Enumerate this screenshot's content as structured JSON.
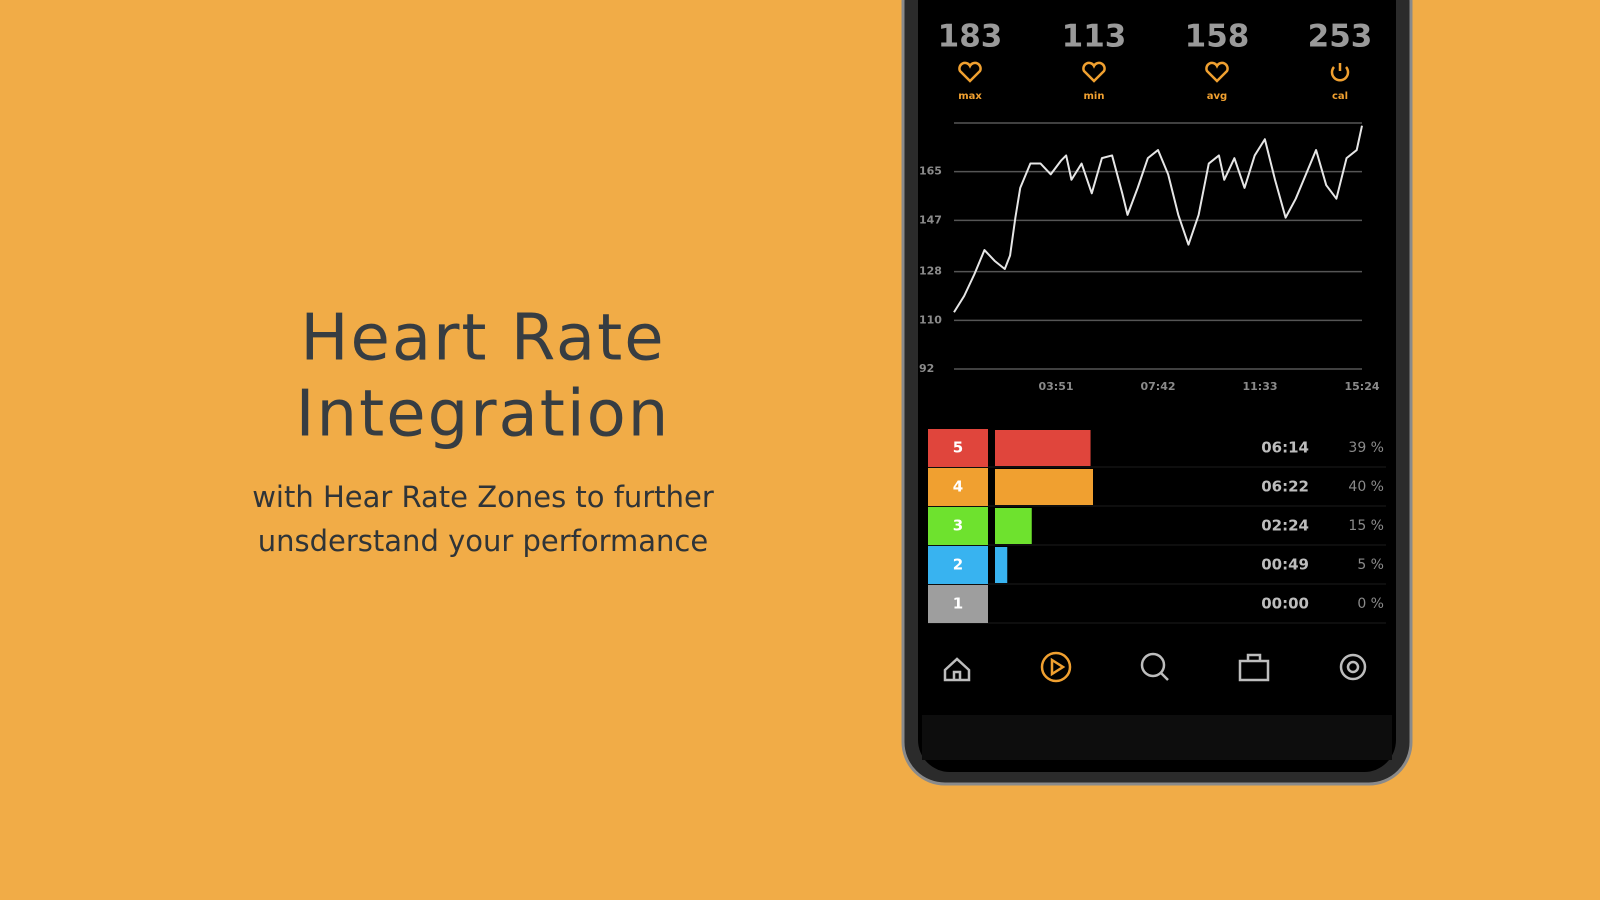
{
  "title_lines": [
    "Heart Rate",
    "Integration"
  ],
  "subtitle_lines": [
    "with Hear Rate Zones to further",
    "unsderstand your performance"
  ],
  "stats": [
    {
      "value": 183,
      "label": "max"
    },
    {
      "value": 113,
      "label": "min"
    },
    {
      "value": 158,
      "label": "avg"
    },
    {
      "value": 253,
      "label": "cal"
    }
  ],
  "chart_data": {
    "type": "line",
    "x": [
      0,
      23,
      46,
      69,
      92,
      115,
      127,
      139,
      150,
      173,
      196,
      219,
      242,
      254,
      266,
      289,
      312,
      335,
      358,
      381,
      393,
      416,
      439,
      462,
      485,
      508,
      531,
      554,
      577,
      600,
      612,
      635,
      658,
      681,
      704,
      727,
      751,
      774,
      797,
      820,
      843,
      866,
      889,
      912,
      924
    ],
    "series": [
      {
        "color": "#e6e6e6",
        "values": [
          113,
          119,
          127,
          136,
          132,
          129,
          134,
          148,
          159,
          168,
          168,
          164,
          169,
          171,
          162,
          168,
          157,
          170,
          171,
          157,
          149,
          159,
          170,
          173,
          164,
          149,
          138,
          149,
          168,
          171,
          162,
          170,
          159,
          171,
          177,
          162,
          148,
          155,
          164,
          173,
          160,
          155,
          170,
          173,
          182
        ]
      }
    ],
    "xlim": [
      0,
      924
    ],
    "ylim": [
      92,
      183
    ],
    "xticks": [
      {
        "value": 231,
        "label": "03:51"
      },
      {
        "value": 462,
        "label": "07:42"
      },
      {
        "value": 693,
        "label": "11:33"
      },
      {
        "value": 924,
        "label": "15:24"
      }
    ],
    "yticks": [
      92,
      110,
      128,
      147,
      165
    ],
    "grid": true
  },
  "zones": {
    "labels": [
      "5",
      "4",
      "3",
      "2",
      "1"
    ],
    "colors": [
      "#e0453c",
      "#f0a030",
      "#6ee22e",
      "#38b3f0",
      "#9e9e9e"
    ],
    "times": [
      "06:14",
      "06:22",
      "02:24",
      "00:49",
      "00:00"
    ],
    "percent": [
      39,
      40,
      15,
      5,
      0
    ],
    "percent_labels": [
      "39 %",
      "40 %",
      "15 %",
      "5 %",
      "0 %"
    ]
  }
}
